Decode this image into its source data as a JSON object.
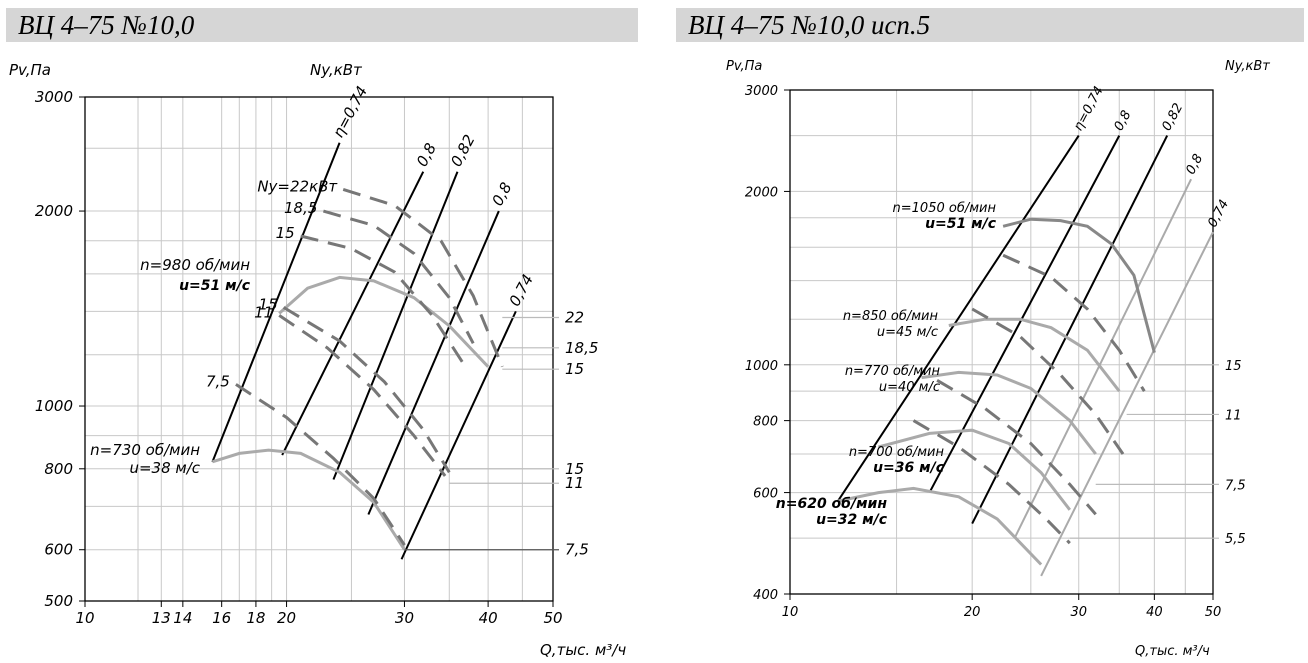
{
  "chart_data": [
    {
      "type": "line",
      "title": "ВЦ 4–75 №10,0",
      "ylabel": "Pv,Па",
      "ylabel_right": "Ny,кВт",
      "xlabel": "Q,тыс. м³/ч",
      "x_scale": "log",
      "y_scale": "log",
      "xlim": [
        10,
        50
      ],
      "ylim": [
        500,
        3000
      ],
      "x_ticks": [
        "10",
        "13",
        "14",
        "16",
        "18",
        "20",
        "30",
        "40",
        "50"
      ],
      "y_ticks": [
        "500",
        "600",
        "800",
        "1000",
        "2000",
        "3000"
      ],
      "power_right_labels": [
        "22",
        "18,5",
        "15",
        "15",
        "11",
        "7,5"
      ],
      "efficiency_lines": [
        {
          "label": "η=0,74",
          "points": [
            [
              15.5,
              820
            ],
            [
              24,
              2550
            ]
          ]
        },
        {
          "label": "0,8",
          "points": [
            [
              19.7,
              840
            ],
            [
              32,
              2300
            ]
          ]
        },
        {
          "label": "0,82",
          "points": [
            [
              23.5,
              770
            ],
            [
              36,
              2300
            ]
          ]
        },
        {
          "label": "0,8",
          "points": [
            [
              26.5,
              680
            ],
            [
              41.5,
              2000
            ]
          ]
        },
        {
          "label": "0,74",
          "points": [
            [
              29.7,
              580
            ],
            [
              44,
              1400
            ]
          ]
        }
      ],
      "series": [
        {
          "name": "n=980 об/мин",
          "label2": "u=51 м/с",
          "kind": "pressure",
          "points": [
            [
              19.5,
              1390
            ],
            [
              21.5,
              1520
            ],
            [
              24,
              1580
            ],
            [
              27,
              1560
            ],
            [
              31,
              1470
            ],
            [
              35,
              1330
            ],
            [
              40,
              1150
            ]
          ]
        },
        {
          "name": "n=730 об/мин",
          "label2": "u=38 м/с",
          "kind": "pressure",
          "points": [
            [
              15.5,
              820
            ],
            [
              17,
              845
            ],
            [
              18.8,
              855
            ],
            [
              21,
              845
            ],
            [
              24,
              790
            ],
            [
              27,
              710
            ],
            [
              30,
              600
            ]
          ]
        }
      ],
      "power_curves": [
        {
          "label": "Ny=22кВт",
          "points": [
            [
              24.3,
              2160
            ],
            [
              29,
              2040
            ],
            [
              34,
              1800
            ],
            [
              38,
              1480
            ],
            [
              42,
              1150
            ]
          ]
        },
        {
          "label": "18,5",
          "points": [
            [
              22.7,
              2000
            ],
            [
              27,
              1900
            ],
            [
              31,
              1720
            ],
            [
              35,
              1470
            ],
            [
              38,
              1250
            ]
          ]
        },
        {
          "label": "15",
          "points": [
            [
              21,
              1830
            ],
            [
              25,
              1750
            ],
            [
              29,
              1610
            ],
            [
              33,
              1380
            ],
            [
              37,
              1150
            ]
          ]
        },
        {
          "label": "15",
          "points": [
            [
              19.8,
              1420
            ],
            [
              24,
              1260
            ],
            [
              28,
              1090
            ],
            [
              32,
              920
            ],
            [
              35,
              790
            ]
          ]
        },
        {
          "label": "11",
          "points": [
            [
              19.5,
              1380
            ],
            [
              23,
              1230
            ],
            [
              27,
              1060
            ],
            [
              31,
              900
            ],
            [
              34.5,
              780
            ]
          ]
        },
        {
          "label": "7,5",
          "points": [
            [
              16.8,
              1080
            ],
            [
              20,
              960
            ],
            [
              23.5,
              830
            ],
            [
              27,
              720
            ],
            [
              30,
              610
            ]
          ]
        }
      ]
    },
    {
      "type": "line",
      "title": "ВЦ 4–75 №10,0  исп.5",
      "ylabel": "Pv,Па",
      "ylabel_right": "Ny,кВт",
      "xlabel": "Q,тыс. м³/ч",
      "x_scale": "log",
      "y_scale": "log",
      "xlim": [
        10,
        50
      ],
      "ylim": [
        400,
        3000
      ],
      "x_ticks": [
        "10",
        "20",
        "30",
        "40",
        "50"
      ],
      "y_ticks": [
        "400",
        "600",
        "800",
        "1000",
        "2000",
        "3000"
      ],
      "power_right_labels": [
        "15",
        "11",
        "7,5",
        "5,5"
      ],
      "efficiency_lines": [
        {
          "label": "η=0,74",
          "points": [
            [
              12,
              580
            ],
            [
              30,
              2500
            ]
          ]
        },
        {
          "label": "0,8",
          "points": [
            [
              17,
              600
            ],
            [
              35,
              2500
            ]
          ]
        },
        {
          "label": "0,82",
          "points": [
            [
              20,
              530
            ],
            [
              42,
              2500
            ]
          ]
        },
        {
          "label": "0,8",
          "points": [
            [
              23.5,
              500
            ],
            [
              46,
              2100
            ]
          ]
        },
        {
          "label": "0,74",
          "points": [
            [
              26,
              430
            ],
            [
              50,
              1700
            ]
          ]
        }
      ],
      "series": [
        {
          "name": "n=1050 об/мин",
          "label2": "u=51 м/с",
          "kind": "pressure",
          "points": [
            [
              22.5,
              1740
            ],
            [
              25,
              1790
            ],
            [
              28,
              1780
            ],
            [
              31,
              1740
            ],
            [
              34,
              1620
            ],
            [
              37,
              1430
            ],
            [
              40,
              1050
            ]
          ]
        },
        {
          "name": "n=850 об/мин",
          "label2": "u=45 м/с",
          "kind": "pressure",
          "points": [
            [
              18.3,
              1170
            ],
            [
              21,
              1200
            ],
            [
              24,
              1200
            ],
            [
              27,
              1160
            ],
            [
              31,
              1060
            ],
            [
              35,
              900
            ]
          ]
        },
        {
          "name": "n=770 об/мин",
          "label2": "u=40 м/с",
          "kind": "pressure",
          "points": [
            [
              16.5,
              950
            ],
            [
              19,
              970
            ],
            [
              22,
              960
            ],
            [
              25,
              910
            ],
            [
              29,
              800
            ],
            [
              32,
              700
            ]
          ]
        },
        {
          "name": "n=700 об/мин",
          "label2": "u=36 м/с",
          "kind": "pressure",
          "points": [
            [
              14,
              720
            ],
            [
              17,
              760
            ],
            [
              20,
              770
            ],
            [
              23,
              730
            ],
            [
              26,
              650
            ],
            [
              29,
              560
            ]
          ]
        },
        {
          "name": "n=620 об/мин",
          "label2": "u=32 м/с",
          "kind": "pressure",
          "points": [
            [
              12,
              580
            ],
            [
              14,
              600
            ],
            [
              16,
              610
            ],
            [
              19,
              590
            ],
            [
              22,
              540
            ],
            [
              26,
              450
            ]
          ]
        }
      ],
      "power_curves": [
        {
          "label": "",
          "points": [
            [
              22.5,
              1550
            ],
            [
              27,
              1420
            ],
            [
              31,
              1250
            ],
            [
              35,
              1060
            ],
            [
              38.5,
              900
            ]
          ]
        },
        {
          "label": "",
          "points": [
            [
              20,
              1250
            ],
            [
              24,
              1120
            ],
            [
              28,
              960
            ],
            [
              32,
              820
            ],
            [
              35.5,
              700
            ]
          ]
        },
        {
          "label": "",
          "points": [
            [
              17.5,
              940
            ],
            [
              21,
              840
            ],
            [
              25,
              730
            ],
            [
              29,
              620
            ],
            [
              32,
              550
            ]
          ]
        },
        {
          "label": "",
          "points": [
            [
              16,
              800
            ],
            [
              19,
              720
            ],
            [
              23,
              620
            ],
            [
              26.5,
              540
            ],
            [
              29,
              490
            ]
          ]
        }
      ]
    }
  ]
}
